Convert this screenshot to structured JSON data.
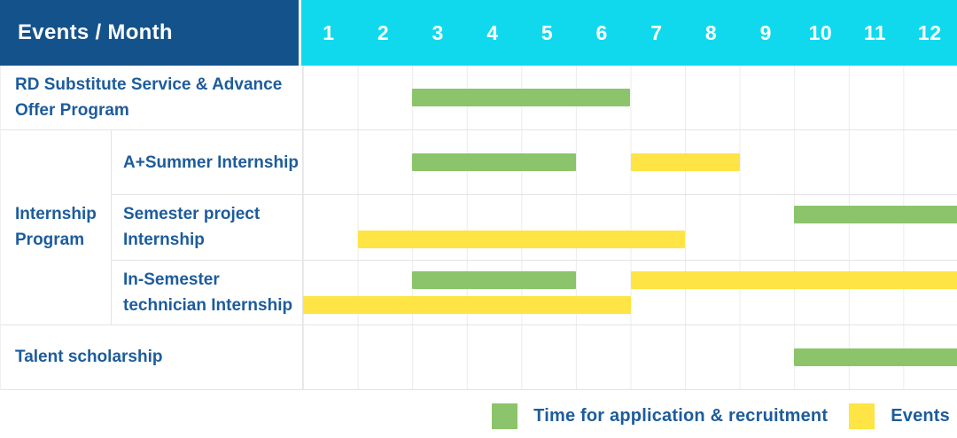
{
  "header": {
    "title": "Events / Month",
    "months": [
      "1",
      "2",
      "3",
      "4",
      "5",
      "6",
      "7",
      "8",
      "9",
      "10",
      "11",
      "12"
    ]
  },
  "colors": {
    "header_bg": "#14528b",
    "months_bg": "#10d9ee",
    "application": "#8bc46a",
    "events": "#fee444",
    "label_text": "#1d5c9c"
  },
  "legend": [
    {
      "key": "application",
      "label": "Time for application & recruitment",
      "color": "#8bc46a"
    },
    {
      "key": "events",
      "label": "Events",
      "color": "#fee444"
    }
  ],
  "chart_data": {
    "type": "bar",
    "variant": "gantt-timeline",
    "title": "Events / Month",
    "x_axis": {
      "label": "Month",
      "ticks": [
        "1",
        "2",
        "3",
        "4",
        "5",
        "6",
        "7",
        "8",
        "9",
        "10",
        "11",
        "12"
      ],
      "range": [
        1,
        12
      ]
    },
    "series_legend": [
      {
        "name": "Time for application & recruitment",
        "color": "#8bc46a"
      },
      {
        "name": "Events",
        "color": "#fee444"
      }
    ],
    "rows": [
      {
        "group": "",
        "label": "RD Substitute Service & Advance Offer Program",
        "lanes": [
          [
            {
              "series": "application",
              "start_month": 3,
              "end_month": 6
            }
          ]
        ]
      },
      {
        "group": "Internship Program",
        "label": "A+Summer Internship",
        "lanes": [
          [
            {
              "series": "application",
              "start_month": 3,
              "end_month": 5
            },
            {
              "series": "events",
              "start_month": 7,
              "end_month": 8
            }
          ]
        ]
      },
      {
        "group": "Internship Program",
        "label": "Semester project Internship",
        "lanes": [
          [
            {
              "series": "application",
              "start_month": 10,
              "end_month": 12
            }
          ],
          [
            {
              "series": "events",
              "start_month": 2,
              "end_month": 7
            }
          ]
        ]
      },
      {
        "group": "Internship Program",
        "label": "In-Semester technician Internship",
        "lanes": [
          [
            {
              "series": "application",
              "start_month": 3,
              "end_month": 5
            },
            {
              "series": "events",
              "start_month": 7,
              "end_month": 12
            }
          ],
          [
            {
              "series": "events",
              "start_month": 1,
              "end_month": 6
            }
          ]
        ]
      },
      {
        "group": "",
        "label": "Talent scholarship",
        "lanes": [
          [
            {
              "series": "application",
              "start_month": 10,
              "end_month": 12
            }
          ]
        ]
      }
    ]
  }
}
